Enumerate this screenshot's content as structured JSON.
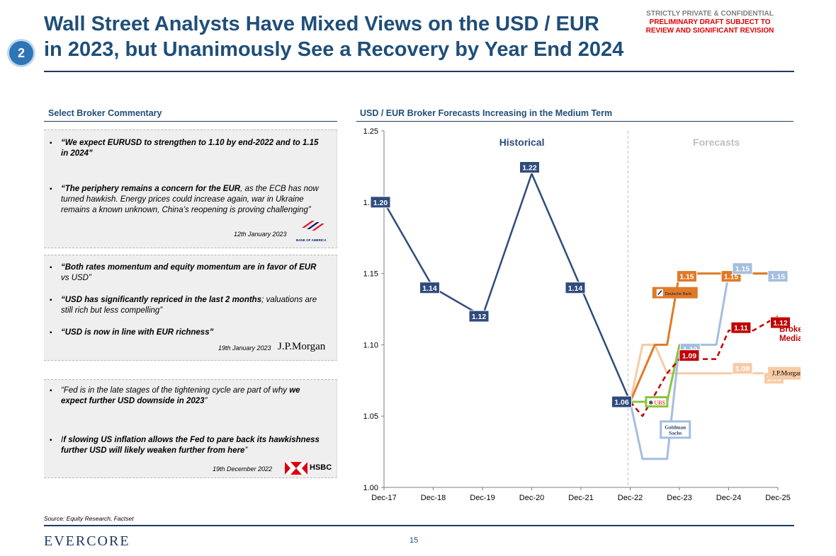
{
  "header": {
    "badge": "2",
    "title_line1": "Wall Street Analysts Have Mixed Views on the USD / EUR",
    "title_line2": "in 2023, but Unanimously See a Recovery by Year End 2024",
    "confidential": [
      "STRICTLY PRIVATE & CONFIDENTIAL",
      "PRELIMINARY DRAFT SUBJECT TO",
      "REVIEW AND SIGNIFICANT REVISION"
    ]
  },
  "left": {
    "heading": "Select Broker Commentary",
    "boa": {
      "b1": "“We expect EURUSD to strengthen to 1.10 by end-2022 and to 1.15 in 2024”",
      "b2_bold": "“The periphery remains a concern for the EUR",
      "b2_rest": ", as the ECB has now turned hawkish. Energy prices could increase again, war in Ukraine remains a known unknown, China’s reopening is proving challenging”",
      "date": "12th January 2023",
      "logo_text": "BANK OF AMERICA"
    },
    "jpm": {
      "b1_bold": "“Both rates momentum and equity momentum are in favor of EUR",
      "b1_rest": " vs USD”",
      "b2_bold": "“USD has significantly repriced in the last 2 months",
      "b2_rest": "; valuations are still rich but less compelling”",
      "b3": "“USD is now in line with EUR richness”",
      "date": "19th January 2023",
      "logo_text": "J.P.Morgan"
    },
    "hsbc": {
      "b1_a": "“Fed is in the late stages of the tightening cycle are part of why ",
      "b1_bold": "we expect further USD downside in 2023",
      "b1_c": "”",
      "b2_a": "I",
      "b2_bold": "f slowing US inflation allows the Fed to pare back its hawkishness further USD will likely weaken further from here",
      "b2_c": "”",
      "date": "19th December 2022",
      "logo_text": "HSBC"
    }
  },
  "right": {
    "heading": "USD / EUR Broker Forecasts Increasing in the Medium Term"
  },
  "footer": {
    "source": "Source: Equity Research, Factset",
    "logo": "EVERCORE",
    "page": "15"
  },
  "colors": {
    "navy": "#2f4b7c",
    "db_orange": "#e07a27",
    "gs_blue": "#a5bedf",
    "jpm_peach": "#f7cba6",
    "ubs_green": "#8cc63f",
    "median_red": "#c00000",
    "forecast_gray": "#bfbfbf"
  },
  "chart_data": {
    "type": "line",
    "categories": [
      "Dec-17",
      "Dec-18",
      "Dec-19",
      "Dec-20",
      "Dec-21",
      "Dec-22",
      "Dec-23",
      "Dec-24",
      "Dec-25"
    ],
    "ylim": [
      1.0,
      1.25
    ],
    "yticks": [
      "1.00",
      "1.05",
      "1.10",
      "1.15",
      "1.20",
      "1.25"
    ],
    "region_labels": {
      "historical": "Historical",
      "forecasts": "Forecasts"
    },
    "historical": {
      "x": [
        0,
        1,
        2,
        3,
        4,
        5
      ],
      "values": [
        1.2,
        1.14,
        1.12,
        1.22,
        1.14,
        1.06
      ],
      "labels": [
        "1.20",
        "1.14",
        "1.12",
        "1.22",
        "1.14",
        "1.06"
      ]
    },
    "series": [
      {
        "name": "Deutsche Bank",
        "color": "#e07a27",
        "points": [
          [
            5,
            1.06
          ],
          [
            5.5,
            1.1
          ],
          [
            5.75,
            1.1
          ],
          [
            6,
            1.15
          ],
          [
            7,
            1.15
          ],
          [
            8,
            1.15
          ]
        ],
        "labels": [
          "1.15",
          "1.15"
        ]
      },
      {
        "name": "Goldman Sachs",
        "color": "#a5bedf",
        "points": [
          [
            5,
            1.06
          ],
          [
            5.25,
            1.02
          ],
          [
            5.75,
            1.02
          ],
          [
            6,
            1.1
          ],
          [
            6.75,
            1.1
          ],
          [
            7,
            1.15
          ],
          [
            8,
            1.15
          ]
        ],
        "labels": [
          "1.10",
          "1.15",
          "1.15"
        ]
      },
      {
        "name": "J.P.Morgan",
        "color": "#f7cba6",
        "points": [
          [
            5,
            1.06
          ],
          [
            5.25,
            1.1
          ],
          [
            5.5,
            1.1
          ],
          [
            5.75,
            1.08
          ],
          [
            6,
            1.08
          ],
          [
            7,
            1.08
          ],
          [
            8,
            1.08
          ]
        ],
        "labels": [
          "1.08",
          "1.08"
        ]
      },
      {
        "name": "UBS",
        "color": "#8cc63f",
        "points": [
          [
            5,
            1.06
          ],
          [
            5.75,
            1.06
          ],
          [
            6,
            1.1
          ]
        ],
        "labels": []
      },
      {
        "name": "Brokers Median",
        "color": "#c00000",
        "dashed": true,
        "points": [
          [
            5,
            1.06
          ],
          [
            5.25,
            1.05
          ],
          [
            5.75,
            1.08
          ],
          [
            6,
            1.09
          ],
          [
            6.75,
            1.09
          ],
          [
            7,
            1.11
          ],
          [
            7.5,
            1.11
          ],
          [
            8,
            1.12
          ]
        ],
        "labels": [
          "1.09",
          "1.11",
          "1.12"
        ]
      }
    ],
    "legend_labels": {
      "db": "Deutsche Bank",
      "ubs": "UBS",
      "gs": "Goldman Sachs",
      "jpm": "J.P.Morgan",
      "median": "Brokers Median"
    }
  }
}
